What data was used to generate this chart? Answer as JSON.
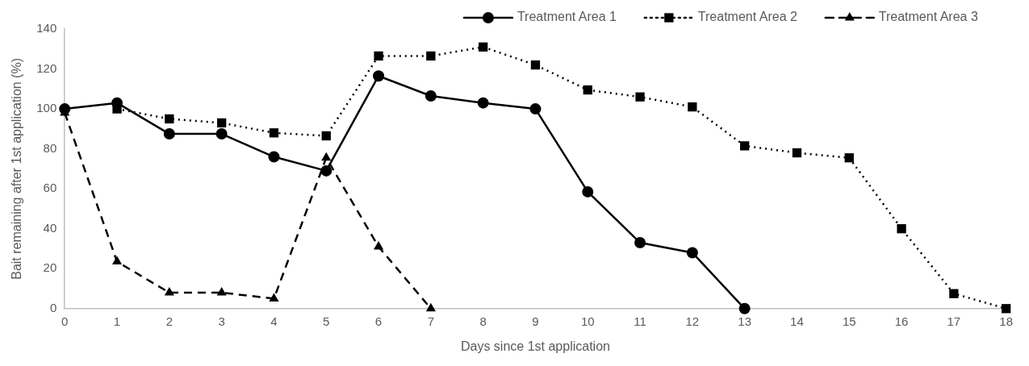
{
  "chart_data": {
    "type": "line",
    "xlabel": "Days since 1st application",
    "ylabel": "Bait remaining after 1st application (%)",
    "x": [
      0,
      1,
      2,
      3,
      4,
      5,
      6,
      7,
      8,
      9,
      10,
      11,
      12,
      13,
      14,
      15,
      16,
      17,
      18
    ],
    "xlim": [
      0,
      18
    ],
    "xticks": [
      0,
      1,
      2,
      3,
      4,
      5,
      6,
      7,
      8,
      9,
      10,
      11,
      12,
      13,
      14,
      15,
      16,
      17,
      18
    ],
    "ylim": [
      0,
      140
    ],
    "yticks": [
      0,
      20,
      40,
      60,
      80,
      100,
      120,
      140
    ],
    "grid": false,
    "legend": "top right",
    "series": [
      {
        "name": "Treatment Area 1",
        "color": "#000000",
        "marker": "circle",
        "line_style": "solid",
        "values": [
          100,
          103,
          87.5,
          87.5,
          76,
          69,
          116.5,
          106.5,
          103,
          100,
          58.5,
          33,
          28,
          0,
          null,
          null,
          null,
          null,
          null
        ]
      },
      {
        "name": "Treatment Area 2",
        "color": "#000000",
        "marker": "square",
        "line_style": "dotted",
        "values": [
          null,
          100,
          95,
          93,
          88,
          86.5,
          126.5,
          126.5,
          131,
          122,
          109.5,
          106,
          101,
          81.5,
          78,
          75.5,
          40,
          7.5,
          0
        ]
      },
      {
        "name": "Treatment Area 3",
        "color": "#000000",
        "marker": "triangle",
        "line_style": "dashed",
        "values": [
          98,
          23.5,
          8,
          8,
          5,
          75.5,
          31,
          0,
          null,
          null,
          null,
          null,
          null,
          null,
          null,
          null,
          null,
          null,
          null
        ]
      }
    ]
  }
}
